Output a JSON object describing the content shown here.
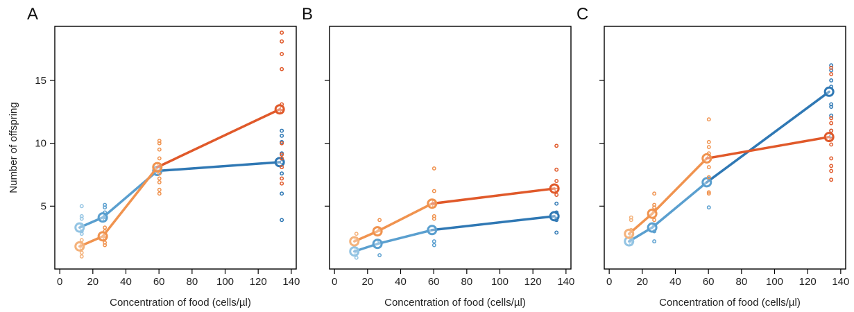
{
  "chart_data": [
    {
      "type": "scatter",
      "panel_label": "A",
      "xlabel": "Concentration of food (cells/µl)",
      "ylabel": "Number of offspring",
      "xlim": [
        -3,
        143
      ],
      "ylim": [
        0,
        19.3
      ],
      "xticks": [
        0,
        20,
        40,
        60,
        80,
        100,
        120,
        140
      ],
      "yticks": [
        5,
        10,
        15
      ],
      "show_ytick_labels": true,
      "series": [
        {
          "color_light": "#93c4e3",
          "color_mid": "#5a9fcf",
          "color_dark": "#2f78b4",
          "mean": [
            [
              12,
              3.3
            ],
            [
              26,
              4.1
            ],
            [
              59,
              7.8
            ],
            [
              133,
              8.5
            ]
          ],
          "points": [
            [
              12,
              5.0
            ],
            [
              12,
              4.2
            ],
            [
              12,
              4.0
            ],
            [
              12,
              3.5
            ],
            [
              12,
              3.2
            ],
            [
              12,
              3.0
            ],
            [
              12,
              2.8
            ],
            [
              26,
              5.1
            ],
            [
              26,
              4.9
            ],
            [
              26,
              4.5
            ],
            [
              26,
              4.2
            ],
            [
              26,
              3.9
            ],
            [
              133,
              11.0
            ],
            [
              133,
              10.6
            ],
            [
              133,
              10.1
            ],
            [
              133,
              9.2
            ],
            [
              133,
              8.5
            ],
            [
              133,
              7.6
            ],
            [
              133,
              6.0
            ],
            [
              133,
              3.9
            ]
          ]
        },
        {
          "color_light": "#f4b27b",
          "color_mid": "#f0934f",
          "color_dark": "#e0592a",
          "mean": [
            [
              12,
              1.8
            ],
            [
              26,
              2.6
            ],
            [
              59,
              8.1
            ],
            [
              133,
              12.7
            ]
          ],
          "points": [
            [
              12,
              2.3
            ],
            [
              12,
              2.0
            ],
            [
              12,
              1.6
            ],
            [
              12,
              1.3
            ],
            [
              12,
              1.0
            ],
            [
              26,
              3.3
            ],
            [
              26,
              3.0
            ],
            [
              26,
              2.7
            ],
            [
              26,
              2.4
            ],
            [
              26,
              2.1
            ],
            [
              26,
              1.9
            ],
            [
              59,
              10.2
            ],
            [
              59,
              10.0
            ],
            [
              59,
              9.5
            ],
            [
              59,
              8.8
            ],
            [
              59,
              8.3
            ],
            [
              59,
              7.6
            ],
            [
              59,
              7.2
            ],
            [
              59,
              6.9
            ],
            [
              59,
              6.3
            ],
            [
              59,
              6.0
            ],
            [
              133,
              18.8
            ],
            [
              133,
              18.1
            ],
            [
              133,
              17.1
            ],
            [
              133,
              15.9
            ],
            [
              133,
              13.1
            ],
            [
              133,
              12.8
            ],
            [
              133,
              12.5
            ],
            [
              133,
              10.0
            ],
            [
              133,
              9.1
            ],
            [
              133,
              8.8
            ],
            [
              133,
              8.1
            ],
            [
              133,
              7.2
            ],
            [
              133,
              6.8
            ]
          ]
        }
      ]
    },
    {
      "type": "scatter",
      "panel_label": "B",
      "xlabel": "Concentration of food (cells/µl)",
      "ylabel": "",
      "xlim": [
        -3,
        143
      ],
      "ylim": [
        0,
        19.3
      ],
      "xticks": [
        0,
        20,
        40,
        60,
        80,
        100,
        120,
        140
      ],
      "yticks": [
        5,
        10,
        15
      ],
      "show_ytick_labels": false,
      "series": [
        {
          "color_light": "#93c4e3",
          "color_mid": "#5a9fcf",
          "color_dark": "#2f78b4",
          "mean": [
            [
              12,
              1.4
            ],
            [
              26,
              2.0
            ],
            [
              59,
              3.1
            ],
            [
              133,
              4.2
            ]
          ],
          "points": [
            [
              12,
              1.6
            ],
            [
              12,
              1.2
            ],
            [
              12,
              0.9
            ],
            [
              26,
              2.2
            ],
            [
              26,
              1.1
            ],
            [
              59,
              2.2
            ],
            [
              59,
              1.9
            ],
            [
              133,
              5.2
            ],
            [
              133,
              4.5
            ],
            [
              133,
              4.0
            ],
            [
              133,
              3.9
            ],
            [
              133,
              2.9
            ]
          ]
        },
        {
          "color_light": "#f4b27b",
          "color_mid": "#f0934f",
          "color_dark": "#e0592a",
          "mean": [
            [
              12,
              2.2
            ],
            [
              26,
              3.0
            ],
            [
              59,
              5.2
            ],
            [
              133,
              6.4
            ]
          ],
          "points": [
            [
              12,
              2.8
            ],
            [
              12,
              2.4
            ],
            [
              26,
              3.9
            ],
            [
              26,
              3.1
            ],
            [
              59,
              8.0
            ],
            [
              59,
              6.2
            ],
            [
              59,
              5.4
            ],
            [
              59,
              5.0
            ],
            [
              59,
              4.2
            ],
            [
              59,
              4.0
            ],
            [
              133,
              9.8
            ],
            [
              133,
              7.9
            ],
            [
              133,
              7.0
            ],
            [
              133,
              6.3
            ],
            [
              133,
              5.9
            ]
          ]
        }
      ]
    },
    {
      "type": "scatter",
      "panel_label": "C",
      "xlabel": "Concentration of food (cells/µl)",
      "ylabel": "",
      "xlim": [
        -3,
        143
      ],
      "ylim": [
        0,
        19.3
      ],
      "xticks": [
        0,
        20,
        40,
        60,
        80,
        100,
        120,
        140
      ],
      "yticks": [
        5,
        10,
        15
      ],
      "show_ytick_labels": false,
      "series": [
        {
          "color_light": "#93c4e3",
          "color_mid": "#5a9fcf",
          "color_dark": "#2f78b4",
          "mean": [
            [
              12,
              2.2
            ],
            [
              26,
              3.3
            ],
            [
              59,
              6.9
            ],
            [
              133,
              14.1
            ]
          ],
          "points": [
            [
              12,
              2.6
            ],
            [
              12,
              2.3
            ],
            [
              12,
              2.0
            ],
            [
              26,
              3.5
            ],
            [
              26,
              3.0
            ],
            [
              26,
              2.2
            ],
            [
              59,
              7.2
            ],
            [
              59,
              4.9
            ],
            [
              133,
              16.2
            ],
            [
              133,
              15.8
            ],
            [
              133,
              15.0
            ],
            [
              133,
              14.5
            ],
            [
              133,
              13.1
            ],
            [
              133,
              12.9
            ],
            [
              133,
              12.2
            ],
            [
              133,
              11.0
            ],
            [
              133,
              10.6
            ]
          ]
        },
        {
          "color_light": "#f4b27b",
          "color_mid": "#f0934f",
          "color_dark": "#e0592a",
          "mean": [
            [
              12,
              2.8
            ],
            [
              26,
              4.4
            ],
            [
              59,
              8.8
            ],
            [
              133,
              10.5
            ]
          ],
          "points": [
            [
              12,
              4.1
            ],
            [
              12,
              3.9
            ],
            [
              12,
              3.1
            ],
            [
              12,
              2.6
            ],
            [
              26,
              6.0
            ],
            [
              26,
              5.1
            ],
            [
              26,
              4.9
            ],
            [
              26,
              4.6
            ],
            [
              26,
              3.9
            ],
            [
              59,
              11.9
            ],
            [
              59,
              10.1
            ],
            [
              59,
              9.7
            ],
            [
              59,
              9.2
            ],
            [
              59,
              8.9
            ],
            [
              59,
              8.1
            ],
            [
              59,
              7.3
            ],
            [
              59,
              6.1
            ],
            [
              59,
              6.0
            ],
            [
              133,
              16.0
            ],
            [
              133,
              15.5
            ],
            [
              133,
              12.0
            ],
            [
              133,
              11.6
            ],
            [
              133,
              11.0
            ],
            [
              133,
              10.3
            ],
            [
              133,
              9.9
            ],
            [
              133,
              8.8
            ],
            [
              133,
              8.2
            ],
            [
              133,
              7.8
            ],
            [
              133,
              7.1
            ]
          ]
        }
      ]
    }
  ]
}
